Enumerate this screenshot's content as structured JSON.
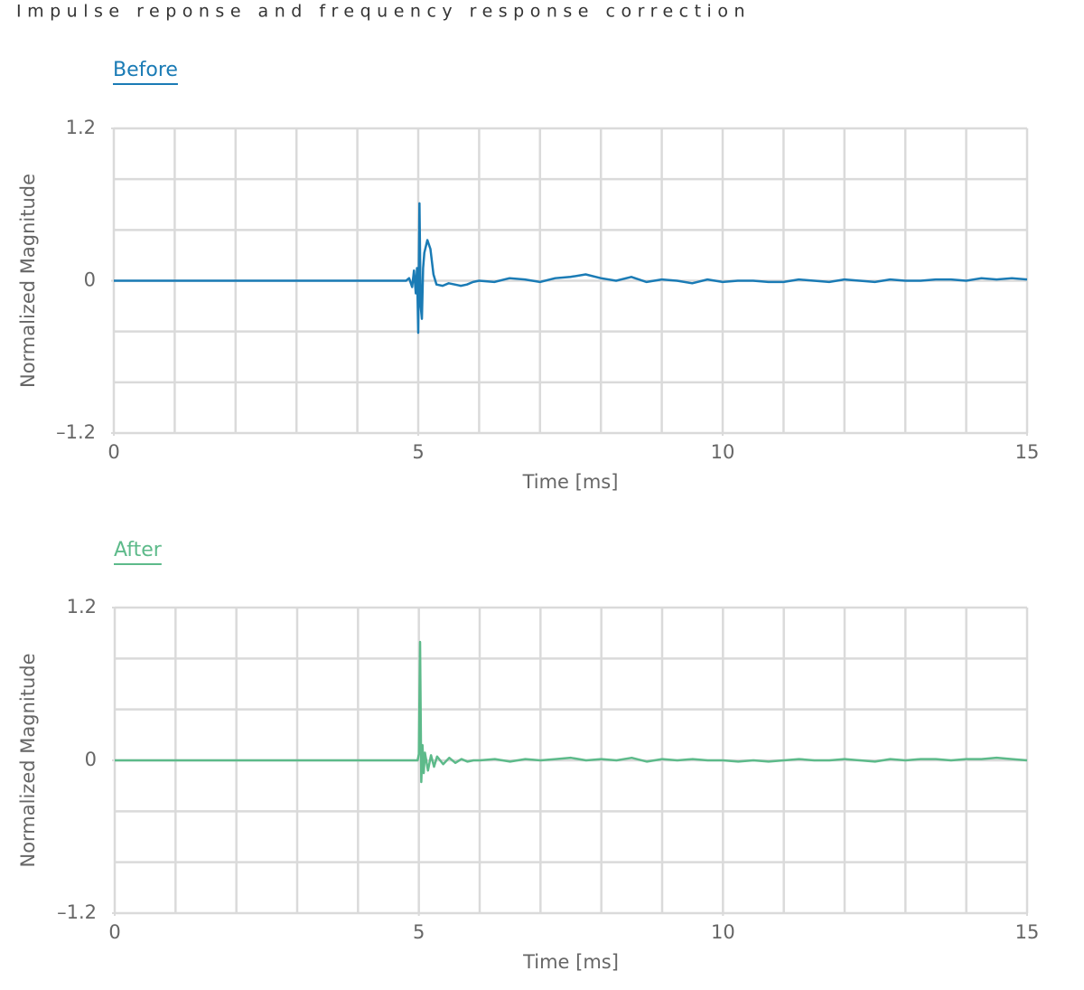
{
  "title": "Impulse reponse and frequency response correction",
  "chart_data": [
    {
      "type": "line",
      "title": "Before",
      "x_label": "Time [ms]",
      "y_label": "Normalized Magnitude",
      "x": [
        0,
        4.8,
        4.85,
        4.9,
        4.93,
        4.96,
        4.98,
        5.0,
        5.02,
        5.04,
        5.06,
        5.08,
        5.1,
        5.15,
        5.2,
        5.25,
        5.3,
        5.4,
        5.5,
        5.6,
        5.7,
        5.8,
        5.9,
        6.0,
        6.25,
        6.5,
        6.75,
        7.0,
        7.25,
        7.5,
        7.75,
        8.0,
        8.25,
        8.5,
        8.75,
        9.0,
        9.25,
        9.5,
        9.75,
        10.0,
        10.25,
        10.5,
        10.75,
        11.0,
        11.25,
        11.5,
        11.75,
        12.0,
        12.25,
        12.5,
        12.75,
        13.0,
        13.25,
        13.5,
        13.75,
        14.0,
        14.25,
        14.5,
        14.75,
        15.0
      ],
      "series": [
        {
          "color": "#1a7bb5",
          "values": [
            0,
            0,
            0.02,
            -0.05,
            0.08,
            -0.1,
            0.1,
            -0.41,
            0.61,
            -0.2,
            -0.3,
            0.1,
            0.22,
            0.32,
            0.25,
            0.05,
            -0.03,
            -0.04,
            -0.02,
            -0.03,
            -0.04,
            -0.03,
            -0.01,
            0.0,
            -0.01,
            0.02,
            0.01,
            -0.01,
            0.02,
            0.03,
            0.05,
            0.02,
            0.0,
            0.03,
            -0.01,
            0.01,
            0.0,
            -0.02,
            0.01,
            -0.01,
            0.0,
            0.0,
            -0.01,
            -0.01,
            0.01,
            0.0,
            -0.01,
            0.01,
            0.0,
            -0.01,
            0.01,
            0.0,
            0.0,
            0.01,
            0.01,
            0.0,
            0.02,
            0.01,
            0.02,
            0.01
          ]
        }
      ],
      "xlim": [
        0,
        15
      ],
      "ylim": [
        -1.2,
        1.2
      ],
      "xticks": [
        0,
        5,
        10,
        15
      ],
      "yticks": [
        {
          "value": -1.2,
          "label": "–1.2"
        },
        0,
        1.2
      ],
      "xgrid": [
        0,
        1,
        2,
        3,
        4,
        5,
        6,
        7,
        8,
        9,
        10,
        11,
        12,
        13,
        14,
        15
      ],
      "ygrid": [
        -1.2,
        -0.8,
        -0.4,
        0,
        0.4,
        0.8,
        1.2
      ],
      "grid": true
    },
    {
      "type": "line",
      "title": "After",
      "x_label": "Time [ms]",
      "y_label": "Normalized Magnitude",
      "x": [
        0,
        4.8,
        4.85,
        4.9,
        4.93,
        4.96,
        4.98,
        5.0,
        5.02,
        5.04,
        5.06,
        5.08,
        5.1,
        5.15,
        5.2,
        5.25,
        5.3,
        5.4,
        5.5,
        5.6,
        5.7,
        5.8,
        5.9,
        6.0,
        6.25,
        6.5,
        6.75,
        7.0,
        7.25,
        7.5,
        7.75,
        8.0,
        8.25,
        8.5,
        8.75,
        9.0,
        9.25,
        9.5,
        9.75,
        10.0,
        10.25,
        10.5,
        10.75,
        11.0,
        11.25,
        11.5,
        11.75,
        12.0,
        12.25,
        12.5,
        12.75,
        13.0,
        13.25,
        13.5,
        13.75,
        14.0,
        14.25,
        14.5,
        14.75,
        15.0
      ],
      "series": [
        {
          "color": "#5dba8a",
          "values": [
            0,
            0,
            0,
            0,
            0,
            0,
            0,
            0.05,
            0.93,
            -0.17,
            0.12,
            -0.1,
            0.06,
            -0.08,
            0.04,
            -0.05,
            0.03,
            -0.03,
            0.02,
            -0.02,
            0.01,
            -0.01,
            0.0,
            0.0,
            0.01,
            -0.01,
            0.01,
            0.0,
            0.01,
            0.02,
            0.0,
            0.01,
            0.0,
            0.02,
            -0.01,
            0.01,
            0.0,
            0.01,
            0.0,
            0.0,
            -0.01,
            0.0,
            -0.01,
            0.0,
            0.01,
            0.0,
            0.0,
            0.01,
            0.0,
            -0.01,
            0.01,
            0.0,
            0.01,
            0.01,
            0.0,
            0.01,
            0.01,
            0.02,
            0.01,
            0.0
          ]
        }
      ],
      "xlim": [
        0,
        15
      ],
      "ylim": [
        -1.2,
        1.2
      ],
      "xticks": [
        0,
        5,
        10,
        15
      ],
      "yticks": [
        {
          "value": -1.2,
          "label": "–1.2"
        },
        0,
        1.2
      ],
      "xgrid": [
        0,
        1,
        2,
        3,
        4,
        5,
        6,
        7,
        8,
        9,
        10,
        11,
        12,
        13,
        14,
        15
      ],
      "ygrid": [
        -1.2,
        -0.8,
        -0.4,
        0,
        0.4,
        0.8,
        1.2
      ],
      "grid": true
    }
  ]
}
